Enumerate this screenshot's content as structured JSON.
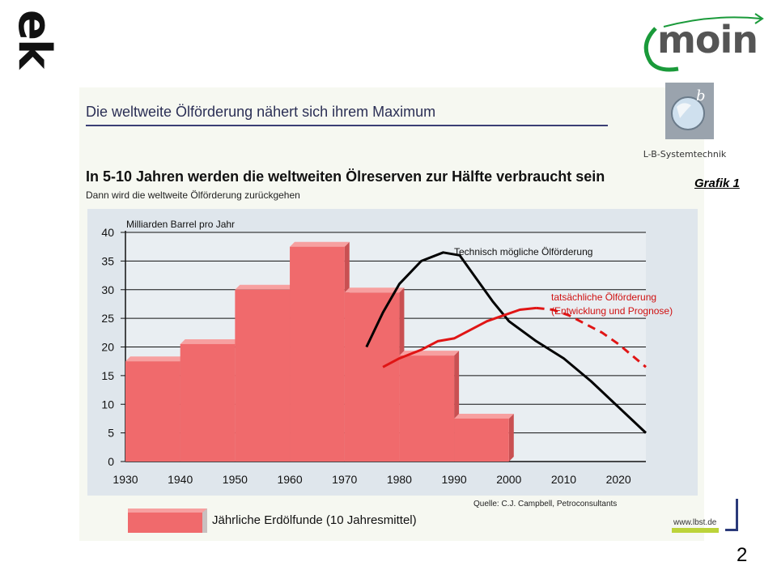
{
  "header": {
    "ek_logo": "ek",
    "moin_logo": "moin",
    "lb_company": "L-B-Systemtechnik",
    "grafik_label": "Grafik 1"
  },
  "headline": "Die weltweite Ölförderung nähert sich ihrem Maximum",
  "page_number": "2",
  "footer": {
    "legend_label": "Jährliche Erdölfunde (10 Jahresmittel)",
    "source": "Quelle: C.J. Campbell, Petroconsultants",
    "web": "www.lbst.de"
  },
  "colors": {
    "bars": "#f06a6c",
    "actual_line": "#e01515",
    "possible_line": "#000000",
    "headline": "#2b2f55",
    "plot_bg": "#dfe6ec"
  },
  "chart_data": {
    "type": "bar",
    "title": "In 5-10 Jahren werden die weltweiten Ölreserven zur Hälfte verbraucht sein",
    "subtitle": "Dann wird die weltweite Ölförderung zurückgehen",
    "ylabel": "Milliarden Barrel pro Jahr",
    "xlim": [
      1930,
      2025
    ],
    "ylim": [
      0,
      40
    ],
    "x_ticks": [
      1930,
      1940,
      1950,
      1960,
      1970,
      1980,
      1990,
      2000,
      2010,
      2020
    ],
    "y_ticks": [
      0,
      5,
      10,
      15,
      20,
      25,
      30,
      35,
      40
    ],
    "grid": "horizontal",
    "bars": [
      {
        "x0": 1930,
        "x1": 1940,
        "value": 17.5
      },
      {
        "x0": 1940,
        "x1": 1950,
        "value": 20.5
      },
      {
        "x0": 1950,
        "x1": 1960,
        "value": 30.0
      },
      {
        "x0": 1960,
        "x1": 1970,
        "value": 37.5
      },
      {
        "x0": 1970,
        "x1": 1980,
        "value": 29.5
      },
      {
        "x0": 1980,
        "x1": 1990,
        "value": 18.5
      },
      {
        "x0": 1990,
        "x1": 2000,
        "value": 7.5
      }
    ],
    "series": [
      {
        "name": "Technisch mögliche Ölförderung",
        "points": [
          [
            1974,
            20
          ],
          [
            1977,
            26
          ],
          [
            1980,
            31
          ],
          [
            1984,
            35
          ],
          [
            1988,
            36.5
          ],
          [
            1991,
            36
          ],
          [
            1994,
            32
          ],
          [
            1997,
            28
          ],
          [
            2000,
            24.5
          ],
          [
            2005,
            21
          ],
          [
            2010,
            18
          ],
          [
            2015,
            14
          ],
          [
            2020,
            9.5
          ],
          [
            2025,
            5
          ]
        ]
      },
      {
        "name": "tatsächliche Ölförderung (Entwicklung und Prognose)",
        "points": [
          [
            1977,
            16.5
          ],
          [
            1980,
            18
          ],
          [
            1984,
            19.5
          ],
          [
            1987,
            21
          ],
          [
            1990,
            21.5
          ],
          [
            1993,
            23
          ],
          [
            1996,
            24.5
          ],
          [
            1999,
            25.5
          ],
          [
            2002,
            26.5
          ],
          [
            2005,
            26.8
          ]
        ],
        "forecast": [
          [
            2005,
            26.8
          ],
          [
            2008,
            26.5
          ],
          [
            2011,
            25.5
          ],
          [
            2014,
            24
          ],
          [
            2017,
            22.5
          ],
          [
            2020,
            20.5
          ],
          [
            2025,
            16.5
          ]
        ]
      }
    ]
  }
}
